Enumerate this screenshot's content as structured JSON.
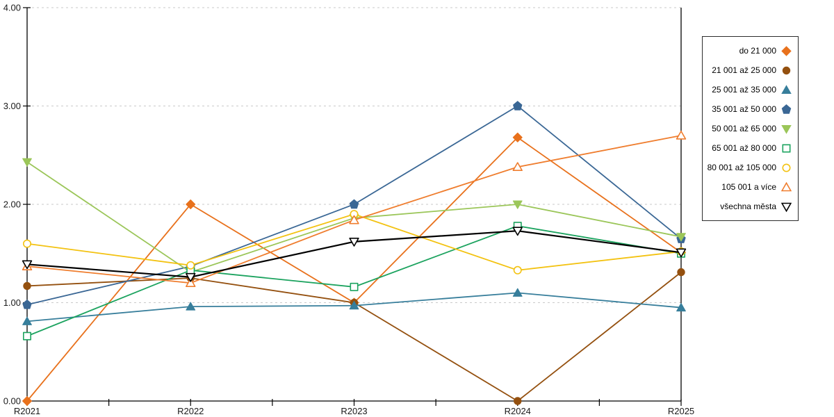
{
  "chart_data": {
    "type": "line",
    "title": "",
    "xlabel": "",
    "ylabel": "",
    "categories": [
      "R2021",
      "R2022",
      "R2023",
      "R2024",
      "R2025"
    ],
    "ylim": [
      0,
      4
    ],
    "yticks": [
      0,
      1,
      2,
      3,
      4
    ],
    "ytick_labels": [
      "0.00",
      "1.00",
      "2.00",
      "3.00",
      "4.00"
    ],
    "grid": "horizontal-dashed",
    "gridline_color": "#c9c9c9",
    "axis_color": "#000000",
    "background": "#ffffff",
    "legend_position": "right",
    "series": [
      {
        "name": "do 21 000",
        "marker": "diamond",
        "marker_style": "filled",
        "color": "#e8711c",
        "values": [
          0.0,
          2.0,
          1.0,
          2.68,
          1.51
        ]
      },
      {
        "name": "21 001 až 25 000",
        "marker": "circle",
        "marker_style": "filled",
        "color": "#94500f",
        "values": [
          1.17,
          1.25,
          1.0,
          0.0,
          1.31
        ]
      },
      {
        "name": "25 001 až 35 000",
        "marker": "triangle-up",
        "marker_style": "filled",
        "color": "#377e9b",
        "values": [
          0.81,
          0.96,
          0.97,
          1.1,
          0.95
        ]
      },
      {
        "name": "35 001 až 50 000",
        "marker": "pentagon",
        "marker_style": "filled",
        "color": "#3a6795",
        "values": [
          0.98,
          1.37,
          2.0,
          3.0,
          1.65
        ]
      },
      {
        "name": "50 001 až 65 000",
        "marker": "triangle-down",
        "marker_style": "filled",
        "color": "#9bc659",
        "values": [
          2.43,
          1.31,
          1.86,
          2.0,
          1.67
        ]
      },
      {
        "name": "65 001 až 80 000",
        "marker": "square",
        "marker_style": "hollow",
        "color": "#1ca35f",
        "values": [
          0.66,
          1.33,
          1.16,
          1.78,
          1.5
        ]
      },
      {
        "name": "80 001 až 105 000",
        "marker": "circle",
        "marker_style": "hollow",
        "color": "#f3c211",
        "values": [
          1.6,
          1.38,
          1.9,
          1.33,
          1.52
        ]
      },
      {
        "name": "105 001 a více",
        "marker": "triangle-up",
        "marker_style": "hollow",
        "color": "#ef7d2e",
        "values": [
          1.37,
          1.2,
          1.84,
          2.38,
          2.7
        ]
      },
      {
        "name": "všechna města",
        "marker": "triangle-down",
        "marker_style": "hollow",
        "color": "#000000",
        "line_width": 2.2,
        "values": [
          1.39,
          1.26,
          1.62,
          1.73,
          1.51
        ]
      }
    ]
  }
}
